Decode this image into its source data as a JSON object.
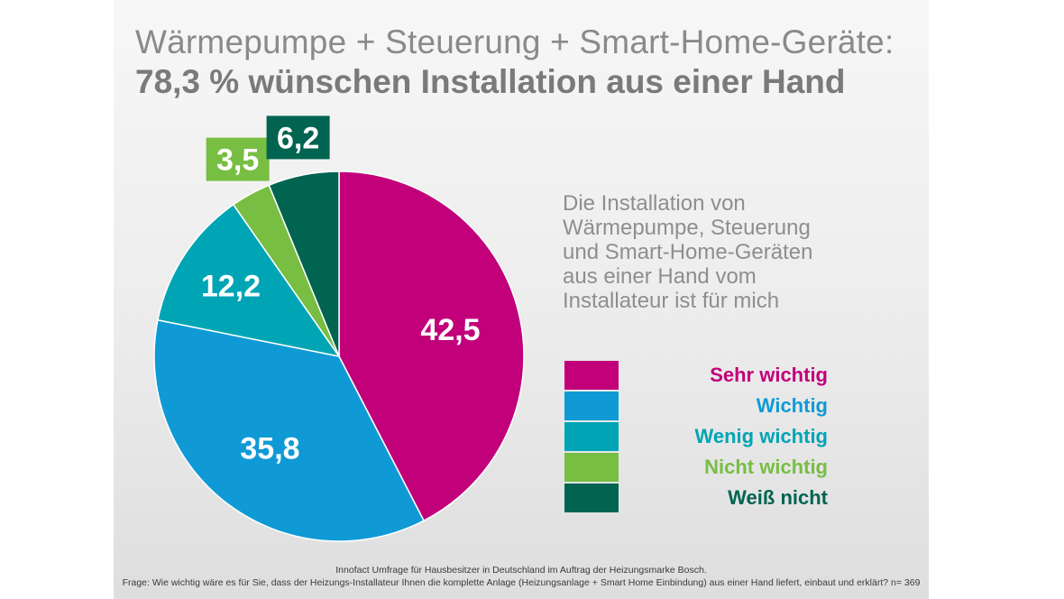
{
  "title_line1": "Wärmepumpe + Steuerung + Smart-Home-Geräte:",
  "title_line2": "78,3 % wünschen Installation aus einer Hand",
  "description": "Die Installation von Wärmepumpe, Steuerung und Smart-Home-Geräten aus einer Hand vom Installateur  ist für mich",
  "footer": {
    "source": "Innofact Umfrage für Hausbesitzer in Deutschland im Auftrag der Heizungsmarke Bosch.",
    "question": "Frage: Wie wichtig wäre es für Sie, dass der Heizungs-Installateur Ihnen die komplette Anlage (Heizungsanlage + Smart Home Einbindung) aus einer Hand liefert, einbaut und erklärt? n= 369"
  },
  "chart_data": {
    "type": "pie",
    "title": "Wärmepumpe + Steuerung + Smart-Home-Geräte: 78,3 % wünschen Installation aus einer Hand",
    "unit": "%",
    "slices": [
      {
        "label": "Sehr wichtig",
        "value": 42.5,
        "display": "42,5",
        "color": "#c1007a"
      },
      {
        "label": "Wichtig",
        "value": 35.8,
        "display": "35,8",
        "color": "#0f9ad6"
      },
      {
        "label": "Wenig wichtig",
        "value": 12.2,
        "display": "12,2",
        "color": "#00a5b5"
      },
      {
        "label": "Nicht wichtig",
        "value": 3.5,
        "display": "3,5",
        "color": "#78be42"
      },
      {
        "label": "Weiß nicht",
        "value": 6.2,
        "display": "6,2",
        "color": "#006450"
      }
    ],
    "legend_position": "right"
  }
}
